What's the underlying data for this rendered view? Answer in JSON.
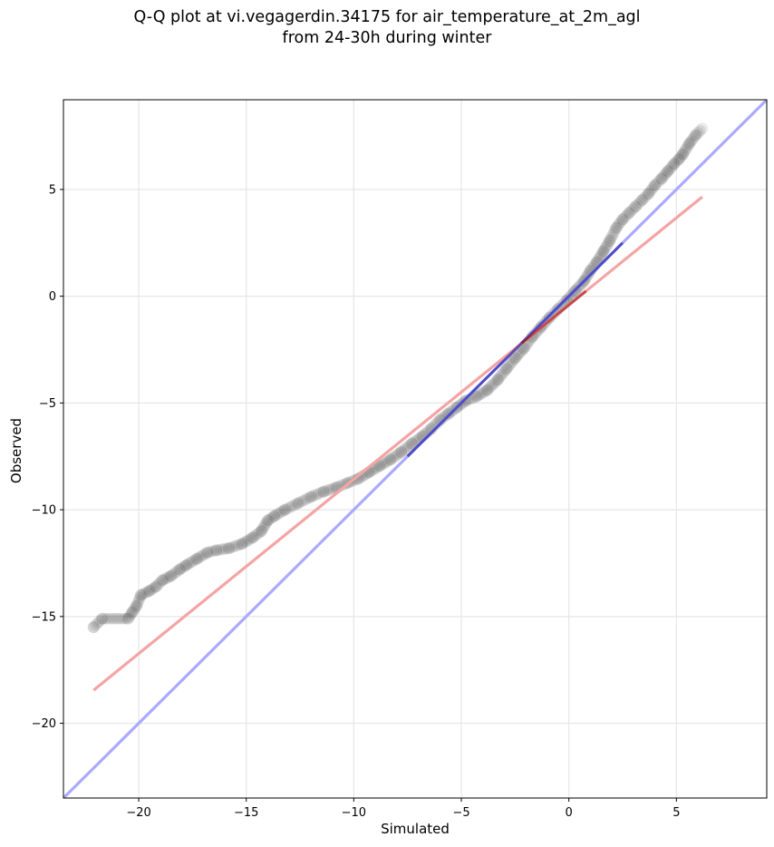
{
  "chart_data": {
    "type": "scatter",
    "title_line1": "Q-Q plot at vi.vegagerdin.34175 for air_temperature_at_2m_agl",
    "title_line2": "from 24-30h during winter",
    "xlabel": "Simulated",
    "ylabel": "Observed",
    "xlim": [
      -23.5,
      9.2
    ],
    "ylim": [
      -23.5,
      9.2
    ],
    "xticks": [
      -20,
      -15,
      -10,
      -5,
      0,
      5
    ],
    "yticks": [
      -20,
      -15,
      -10,
      -5,
      0,
      5
    ],
    "xtick_labels": [
      "−20",
      "−15",
      "−10",
      "−5",
      "0",
      "5"
    ],
    "ytick_labels": [
      "−20",
      "−15",
      "−10",
      "−5",
      "0",
      "5"
    ],
    "grid": true,
    "identity_line": {
      "color": "#aaaaff",
      "from": [
        -23.5,
        -23.5
      ],
      "to": [
        9.2,
        9.2
      ]
    },
    "fit_line": {
      "color": "#f4a4a4",
      "from": [
        -22.1,
        -18.45
      ],
      "to": [
        6.2,
        4.65
      ]
    },
    "quantile_points": {
      "x": [
        -22.1,
        -21.7,
        -20.5,
        -20.3,
        -20.1,
        -19.9,
        -19.5,
        -19.2,
        -18.9,
        -18.5,
        -18.1,
        -17.8,
        -17.3,
        -16.8,
        -16.4,
        -15.8,
        -15.2,
        -14.7,
        -14.3,
        -14.0,
        -13.7,
        -13.2,
        -12.6,
        -12.0,
        -11.4,
        -10.8,
        -10.3,
        -9.8,
        -9.3,
        -8.8,
        -8.3,
        -7.8,
        -7.3,
        -6.8,
        -6.4,
        -6.0,
        -5.6,
        -5.2,
        -4.8,
        -4.3,
        -3.8,
        -3.3,
        -2.9,
        -2.5,
        -2.1,
        -1.7,
        -1.3,
        -0.9,
        -0.5,
        -0.1,
        0.3,
        0.7,
        1.0,
        1.3,
        1.6,
        1.9,
        2.2,
        2.5,
        2.8,
        3.1,
        3.4,
        3.7,
        4.0,
        4.3,
        4.6,
        4.9,
        5.1,
        5.3,
        5.6,
        5.9,
        6.2
      ],
      "y": [
        -15.5,
        -15.1,
        -15.1,
        -14.8,
        -14.5,
        -14.0,
        -13.8,
        -13.6,
        -13.3,
        -13.1,
        -12.8,
        -12.6,
        -12.3,
        -12.0,
        -11.9,
        -11.8,
        -11.6,
        -11.3,
        -11.0,
        -10.5,
        -10.3,
        -10.0,
        -9.7,
        -9.4,
        -9.15,
        -8.95,
        -8.75,
        -8.55,
        -8.25,
        -7.95,
        -7.65,
        -7.3,
        -6.9,
        -6.55,
        -6.2,
        -5.8,
        -5.5,
        -5.2,
        -4.9,
        -4.7,
        -4.4,
        -3.9,
        -3.4,
        -2.9,
        -2.45,
        -1.9,
        -1.45,
        -1.0,
        -0.6,
        -0.2,
        0.25,
        0.7,
        1.2,
        1.6,
        2.1,
        2.6,
        3.2,
        3.6,
        3.9,
        4.2,
        4.5,
        4.8,
        5.2,
        5.5,
        5.85,
        6.2,
        6.4,
        6.65,
        7.15,
        7.55,
        7.85
      ]
    },
    "point_color": "#000000",
    "identity_overlay_color": "#0000a0",
    "fit_overlay_color": "#a00000"
  }
}
